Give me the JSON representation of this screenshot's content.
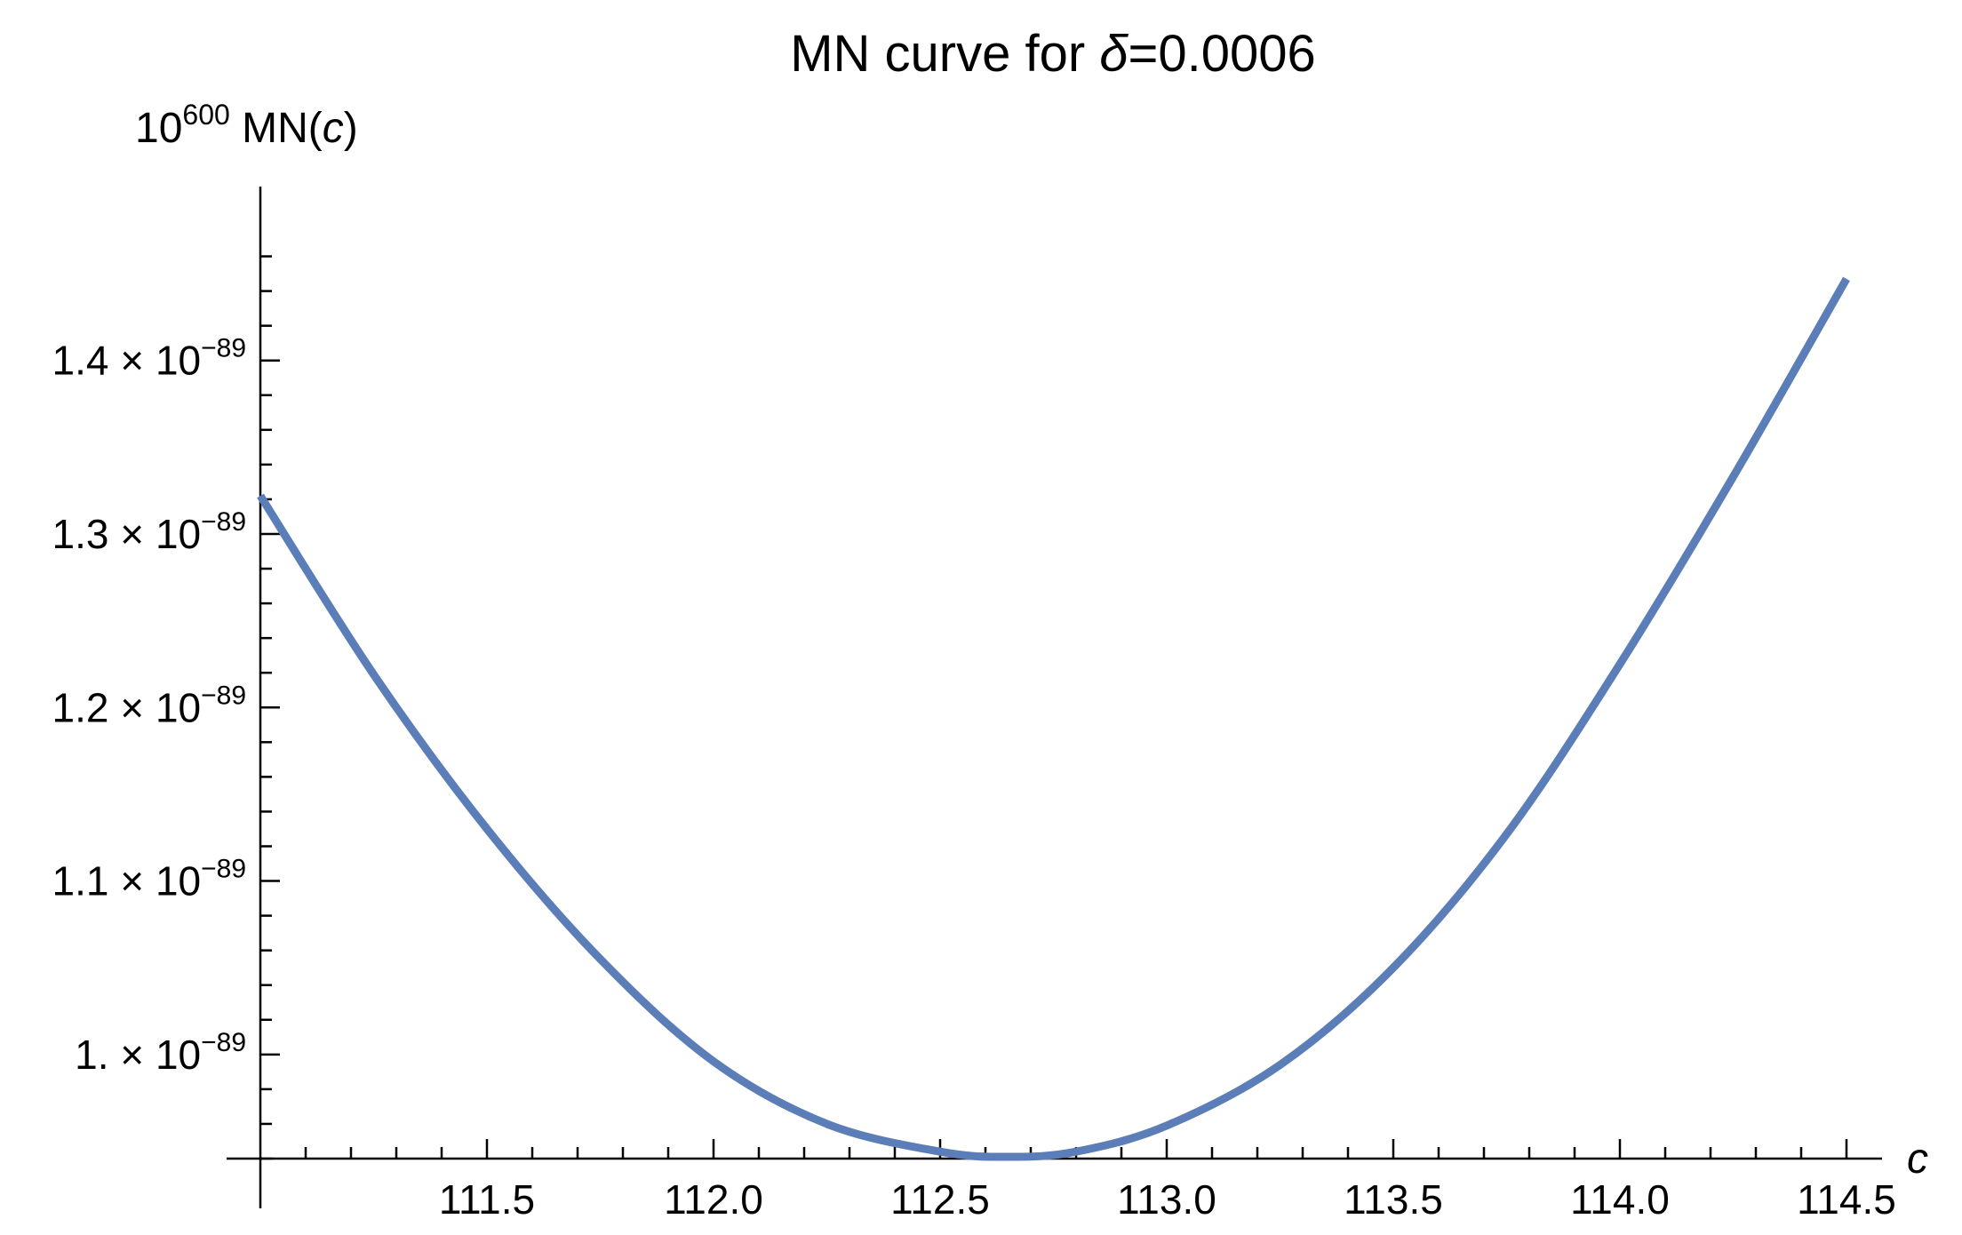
{
  "colors": {
    "curve": "#5b7db8",
    "axis": "#000000",
    "background": "#ffffff"
  },
  "chart_data": {
    "type": "line",
    "title": {
      "prefix": "MN curve for ",
      "symbol": "δ",
      "suffix": "=0.0006"
    },
    "ylabel": {
      "base": "10",
      "exp": "600",
      "text": " MN(",
      "var": "c",
      "close": ")"
    },
    "xlabel": "c",
    "xlim": [
      111.0,
      114.5
    ],
    "ylim": [
      9.4e-90,
      1.47e-89
    ],
    "x_ticks": [
      {
        "value": 111.5,
        "label": "111.5"
      },
      {
        "value": 112.0,
        "label": "112.0"
      },
      {
        "value": 112.5,
        "label": "112.5"
      },
      {
        "value": 113.0,
        "label": "113.0"
      },
      {
        "value": 113.5,
        "label": "113.5"
      },
      {
        "value": 114.0,
        "label": "114.0"
      },
      {
        "value": 114.5,
        "label": "114.5"
      }
    ],
    "y_ticks": [
      {
        "value": 1e-89,
        "mantissa": "1.",
        "exponent": "−89"
      },
      {
        "value": 1.1e-89,
        "mantissa": "1.1",
        "exponent": "−89"
      },
      {
        "value": 1.2e-89,
        "mantissa": "1.2",
        "exponent": "−89"
      },
      {
        "value": 1.3e-89,
        "mantissa": "1.3",
        "exponent": "−89"
      },
      {
        "value": 1.4e-89,
        "mantissa": "1.4",
        "exponent": "−89"
      }
    ],
    "times_symbol": "×",
    "tick_base": "10",
    "series": [
      {
        "x": [
          111.0,
          111.25,
          111.5,
          111.75,
          112.0,
          112.25,
          112.5,
          112.65,
          112.8,
          113.0,
          113.25,
          113.5,
          113.75,
          114.0,
          114.25,
          114.5
        ],
        "y": [
          1.322e-89,
          1.219e-89,
          1.13e-89,
          1.055e-89,
          9.96e-90,
          9.6e-90,
          9.44e-90,
          9.41e-90,
          9.44e-90,
          9.59e-90,
          9.94e-90,
          1.05e-89,
          1.127e-89,
          1.225e-89,
          1.333e-89,
          1.447e-89
        ]
      }
    ]
  }
}
